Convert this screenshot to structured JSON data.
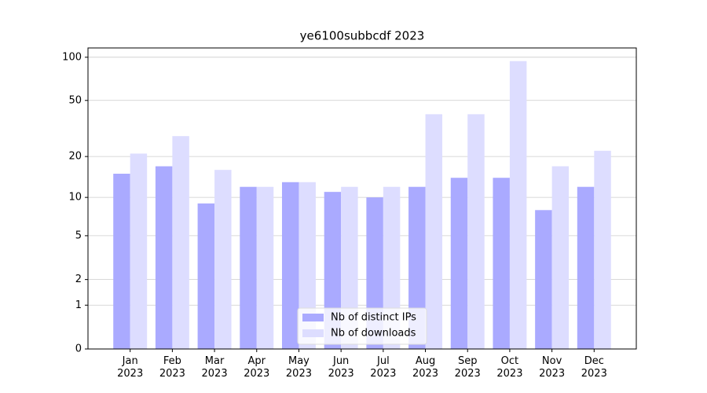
{
  "chart_data": {
    "type": "bar",
    "title": "ye6100subbcdf 2023",
    "categories": [
      "Jan 2023",
      "Feb 2023",
      "Mar 2023",
      "Apr 2023",
      "May 2023",
      "Jun 2023",
      "Jul 2023",
      "Aug 2023",
      "Sep 2023",
      "Oct 2023",
      "Nov 2023",
      "Dec 2023"
    ],
    "series": [
      {
        "name": "Nb of distinct IPs",
        "color": "#aaaaff",
        "values": [
          15,
          17,
          9,
          12,
          13,
          11,
          10,
          12,
          14,
          14,
          8,
          12
        ]
      },
      {
        "name": "Nb of downloads",
        "color": "#ddddff",
        "values": [
          21,
          28,
          16,
          12,
          13,
          12,
          12,
          40,
          40,
          94,
          17,
          22
        ]
      }
    ],
    "yscale": "log1p",
    "ylim": [
      0,
      116
    ],
    "yticks": [
      0,
      1,
      2,
      5,
      10,
      20,
      50,
      100
    ],
    "grid": true,
    "legend": "lower center"
  }
}
